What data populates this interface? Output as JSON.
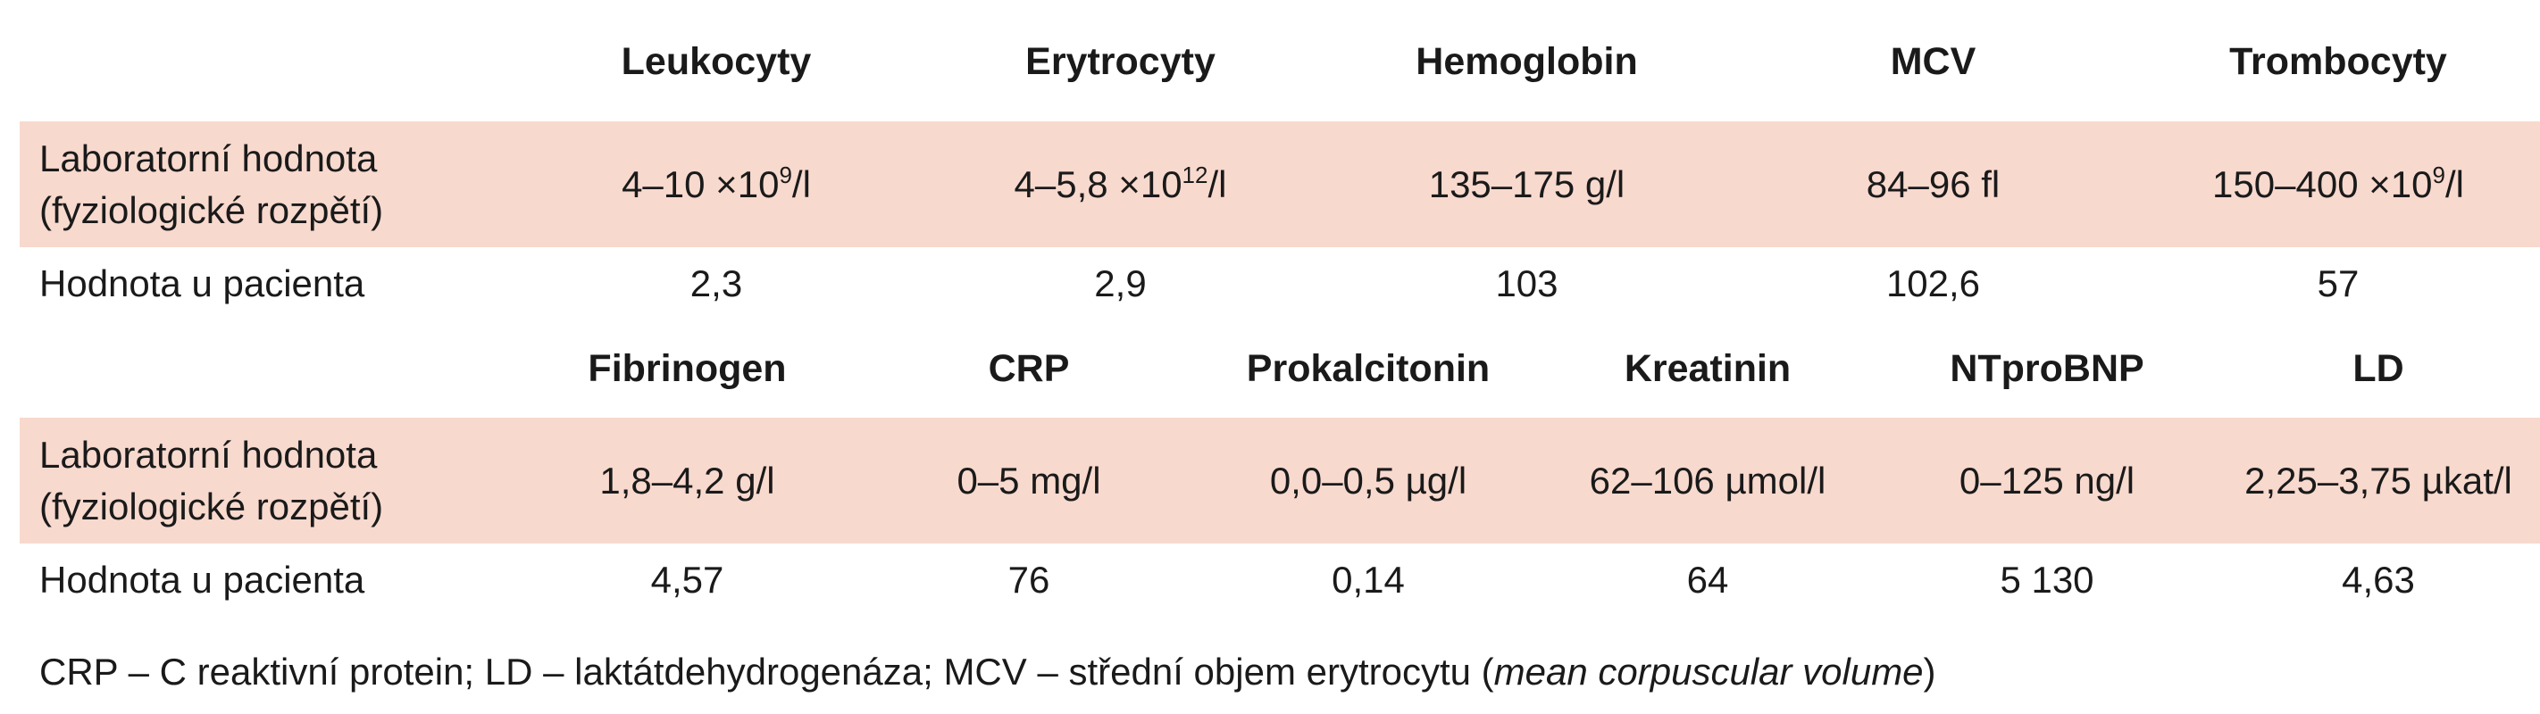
{
  "table1": {
    "headers": [
      "Leukocyty",
      "Erytrocyty",
      "Hemoglobin",
      "MCV",
      "Trombocyty"
    ],
    "range_label_line1": "Laboratorní hodnota",
    "range_label_line2": "(fyziologické rozpětí)",
    "ranges": [
      {
        "base": "4–10 ×10",
        "sup": "9",
        "unit": "/l"
      },
      {
        "base": "4–5,8 ×10",
        "sup": "12",
        "unit": "/l"
      },
      {
        "base": "135–175 g/l",
        "sup": "",
        "unit": ""
      },
      {
        "base": "84–96 fl",
        "sup": "",
        "unit": ""
      },
      {
        "base": "150–400 ×10",
        "sup": "9",
        "unit": "/l"
      }
    ],
    "patient_label": "Hodnota u pacienta",
    "patient_values": [
      "2,3",
      "2,9",
      "103",
      "102,6",
      "57"
    ]
  },
  "table2": {
    "headers": [
      "Fibrinogen",
      "CRP",
      "Prokalcitonin",
      "Kreatinin",
      "NTproBNP",
      "LD"
    ],
    "range_label_line1": "Laboratorní hodnota",
    "range_label_line2": "(fyziologické rozpětí)",
    "ranges": [
      "1,8–4,2 g/l",
      "0–5 mg/l",
      "0,0–0,5 µg/l",
      "62–106 µmol/l",
      "0–125 ng/l",
      "2,25–3,75 µkat/l"
    ],
    "patient_label": "Hodnota u pacienta",
    "patient_values": [
      "4,57",
      "76",
      "0,14",
      "64",
      "5 130",
      "4,63"
    ]
  },
  "footnote": {
    "text": "CRP – C reaktivní protein; LD – laktátdehydrogenáza; MCV – střední objem erytrocytu (",
    "italic": "mean corpuscular volume",
    "close": ")"
  },
  "colors": {
    "row_highlight": "#f8d9ce",
    "text": "#1a1a1a"
  }
}
